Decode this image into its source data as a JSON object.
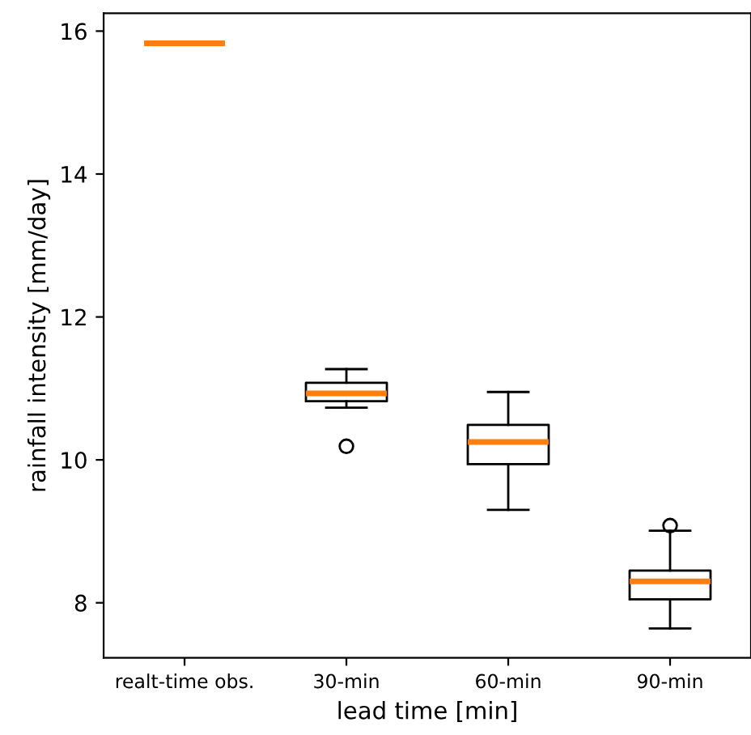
{
  "chart_data": {
    "type": "box",
    "xlabel": "lead time [min]",
    "ylabel": "rainfall intensity [mm/day]",
    "categories": [
      "realt-time obs.",
      "30-min",
      "60-min",
      "90-min"
    ],
    "boxes": [
      {
        "low": 15.83,
        "q1": 15.83,
        "median": 15.83,
        "q3": 15.83,
        "high": 15.83
      },
      {
        "low": 10.73,
        "q1": 10.82,
        "median": 10.93,
        "q3": 11.08,
        "high": 11.27,
        "outliers": [
          10.19
        ]
      },
      {
        "low": 9.3,
        "q1": 9.94,
        "median": 10.25,
        "q3": 10.49,
        "high": 10.95
      },
      {
        "low": 7.64,
        "q1": 8.05,
        "median": 8.3,
        "q3": 8.45,
        "high": 9.01,
        "outliers": [
          9.08
        ]
      }
    ],
    "ylim": [
      7.23,
      16.25
    ],
    "yticks": [
      8,
      10,
      12,
      14,
      16
    ],
    "grid": false
  }
}
